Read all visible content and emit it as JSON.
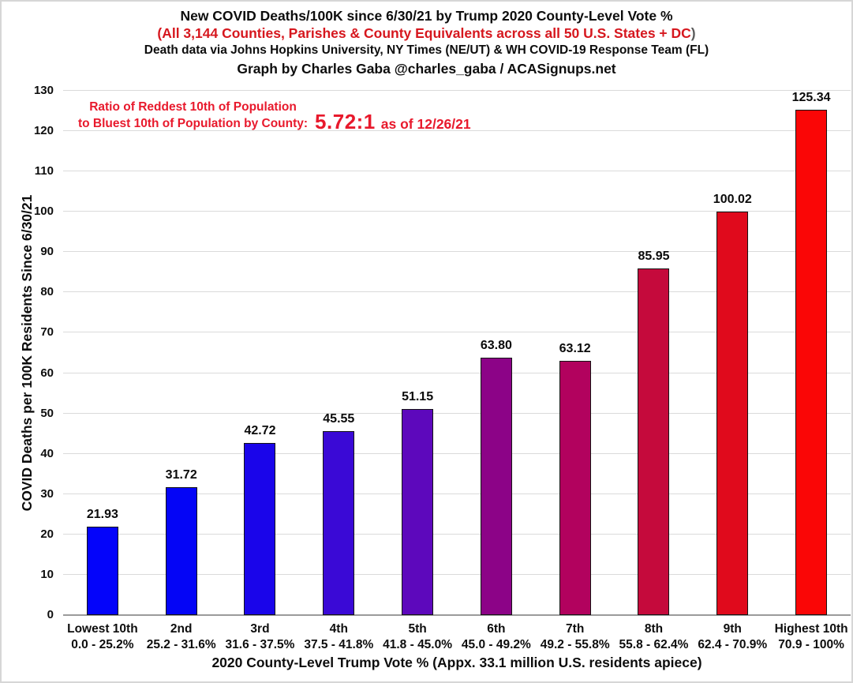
{
  "header": {
    "title": "New COVID Deaths/100K since 6/30/21 by Trump 2020 County-Level Vote %",
    "subtitle_red": "(All 3,144 Counties, Parishes & County Equivalents across all 50 U.S. States + DC",
    "subtitle_paren": ")",
    "source_line": "Death data via Johns Hopkins University, NY Times (NE/UT) & WH COVID-19 Response Team (FL)",
    "credit_line": "Graph by Charles Gaba @charles_gaba / ACASignups.net"
  },
  "annotation": {
    "line1": "Ratio of Reddest 10th of Population",
    "line2": "to Bluest 10th of Population by County:",
    "ratio": "5.72:1",
    "as_of": "as of 12/26/21",
    "color": "#e8192c"
  },
  "chart_data": {
    "type": "bar",
    "title": "New COVID Deaths/100K since 6/30/21 by Trump 2020 County-Level Vote %",
    "xlabel": "2020 County-Level Trump Vote % (Appx. 33.1 million U.S. residents apiece)",
    "ylabel": "COVID Deaths per 100K Residents Since 6/30/21",
    "ylim": [
      0,
      130
    ],
    "ytick_step": 10,
    "grid": true,
    "legend": "none",
    "categories": [
      "Lowest 10th",
      "2nd",
      "3rd",
      "4th",
      "5th",
      "6th",
      "7th",
      "8th",
      "9th",
      "Highest 10th"
    ],
    "category_ranges": [
      "0.0 - 25.2%",
      "25.2 - 31.6%",
      "31.6 - 37.5%",
      "37.5 - 41.8%",
      "41.8 - 45.0%",
      "45.0 - 49.2%",
      "49.2 - 55.8%",
      "55.8 - 62.4%",
      "62.4 - 70.9%",
      "70.9 - 100%"
    ],
    "values": [
      21.93,
      31.72,
      42.72,
      45.55,
      51.15,
      63.8,
      63.12,
      85.95,
      100.02,
      125.34
    ],
    "bar_colors": [
      "#0404fa",
      "#0405f6",
      "#1a05ea",
      "#3a09d6",
      "#5d08bc",
      "#8c0387",
      "#b2025e",
      "#c50a3c",
      "#e00a1c",
      "#fa0606"
    ],
    "gridline_color": "#dadada",
    "axis_line_color": "#9b9b9b"
  }
}
